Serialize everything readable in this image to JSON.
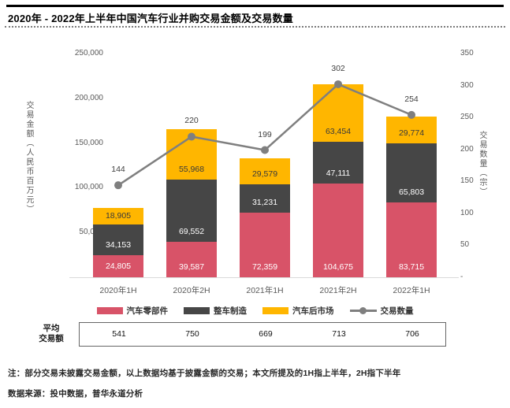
{
  "title": "2020年 - 2022年上半年中国汽车行业并购交易金额及交易数量",
  "chart_data": {
    "type": "bar",
    "subtype": "stacked-bar-with-line",
    "categories": [
      "2020年1H",
      "2020年2H",
      "2021年1H",
      "2021年2H",
      "2022年1H"
    ],
    "series": [
      {
        "name": "汽车零部件",
        "color": "#D85368",
        "label_color": "#ffffff",
        "values": [
          24805,
          39587,
          72359,
          104675,
          83715
        ]
      },
      {
        "name": "整车制造",
        "color": "#464646",
        "label_color": "#ffffff",
        "values": [
          34153,
          69552,
          31231,
          47111,
          65803
        ]
      },
      {
        "name": "汽车后市场",
        "color": "#FFB600",
        "label_color": "#3a3a3a",
        "values": [
          18905,
          55968,
          29579,
          63454,
          29774
        ]
      }
    ],
    "line_series": {
      "name": "交易数量",
      "color": "#7F7F7F",
      "values": [
        144,
        220,
        199,
        302,
        254
      ]
    },
    "ylabel_left": "交易金额（人民币百万元）",
    "ylabel_right": "交易数量（宗）",
    "ylim_left": [
      0,
      250000
    ],
    "ytick_step_left": 50000,
    "ylim_right": [
      0,
      350
    ],
    "ytick_step_right": 50,
    "zero_tick_label": "-",
    "grid": false,
    "legend_position": "bottom"
  },
  "avg_table": {
    "label": "平均\n交易额",
    "values": [
      "541",
      "750",
      "669",
      "713",
      "706"
    ]
  },
  "notes": {
    "note1": "注：部分交易未披露交易金额，以上数据均基于披露金额的交易；本文所提及的1H指上半年，2H指下半年",
    "note2": "数据来源：投中数据，普华永道分析"
  },
  "colors": {
    "accent_pink": "#D85368",
    "accent_dark": "#464646",
    "accent_yellow": "#FFB600",
    "line_gray": "#7F7F7F",
    "axis_text": "#595959"
  }
}
